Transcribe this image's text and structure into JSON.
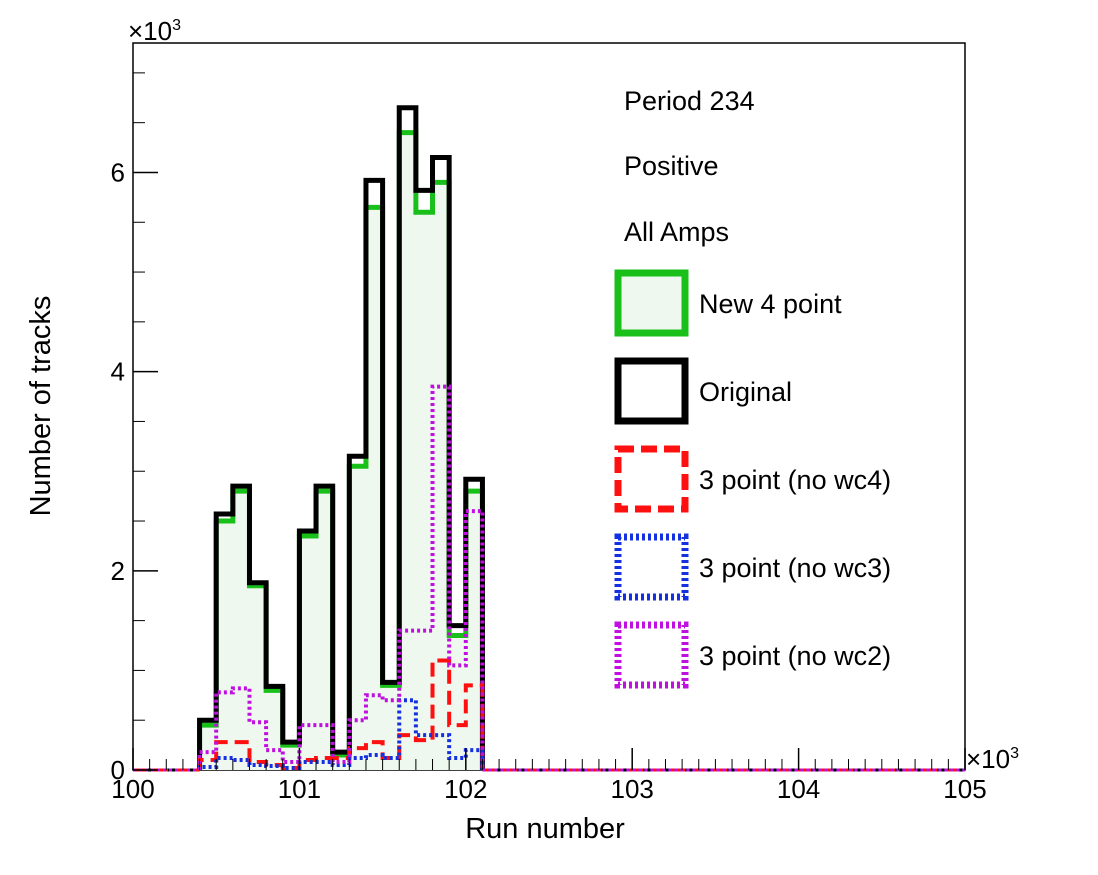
{
  "chart_data": {
    "type": "step-histogram",
    "xlabel": "Run number",
    "ylabel": "Number of tracks",
    "x_multiplier": "×10",
    "x_multiplier_exp": "3",
    "y_multiplier": "×10",
    "y_multiplier_exp": "3",
    "xlim": [
      100,
      105
    ],
    "ylim": [
      0,
      7.3
    ],
    "x_ticks": [
      100,
      101,
      102,
      103,
      104,
      105
    ],
    "x_tick_labels": [
      "100",
      "101",
      "102",
      "103",
      "104",
      "105"
    ],
    "y_ticks": [
      0,
      2,
      4,
      6
    ],
    "y_tick_labels": [
      "0",
      "2",
      "4",
      "6"
    ],
    "bin_width": 0.1,
    "data_bin_start": 100.4,
    "overflow_baseline": {
      "from": 102.1,
      "to": 105,
      "value": 0
    },
    "annotations": [
      "Period 234",
      "Positive",
      "All Amps"
    ],
    "legend_placement": "right",
    "series": [
      {
        "name": "New 4 point",
        "style": "solid",
        "color": "#19c019",
        "fill": "#eef8ee",
        "values": [
          0.45,
          2.5,
          2.8,
          1.85,
          0.8,
          0.25,
          2.35,
          2.8,
          0.15,
          3.05,
          5.65,
          0.85,
          6.4,
          5.6,
          5.9,
          1.35,
          2.8
        ]
      },
      {
        "name": "Original",
        "style": "solid",
        "color": "#000000",
        "values": [
          0.5,
          2.57,
          2.85,
          1.88,
          0.84,
          0.28,
          2.4,
          2.85,
          0.18,
          3.15,
          5.92,
          0.88,
          6.65,
          5.82,
          6.15,
          1.45,
          2.92
        ]
      },
      {
        "name": "3 point (no wc4)",
        "style": "dashed",
        "color": "#ff1010",
        "values": [
          0.1,
          0.28,
          0.28,
          0.08,
          0.05,
          0.02,
          0.1,
          0.12,
          0.12,
          0.22,
          0.28,
          0.12,
          0.35,
          0.3,
          1.1,
          0.45,
          0.85
        ]
      },
      {
        "name": "3 point (no wc3)",
        "style": "dotted",
        "color": "#1530e0",
        "values": [
          0.03,
          0.12,
          0.1,
          0.05,
          0.04,
          0.02,
          0.08,
          0.08,
          0.05,
          0.12,
          0.15,
          0.12,
          0.7,
          0.35,
          0.35,
          0.12,
          0.2
        ]
      },
      {
        "name": "3 point (no wc2)",
        "style": "dotted",
        "color": "#c010e0",
        "values": [
          0.18,
          0.78,
          0.82,
          0.48,
          0.2,
          0.08,
          0.45,
          0.45,
          0.08,
          0.5,
          0.75,
          0.7,
          1.4,
          1.4,
          3.85,
          1.05,
          2.6
        ]
      }
    ]
  }
}
